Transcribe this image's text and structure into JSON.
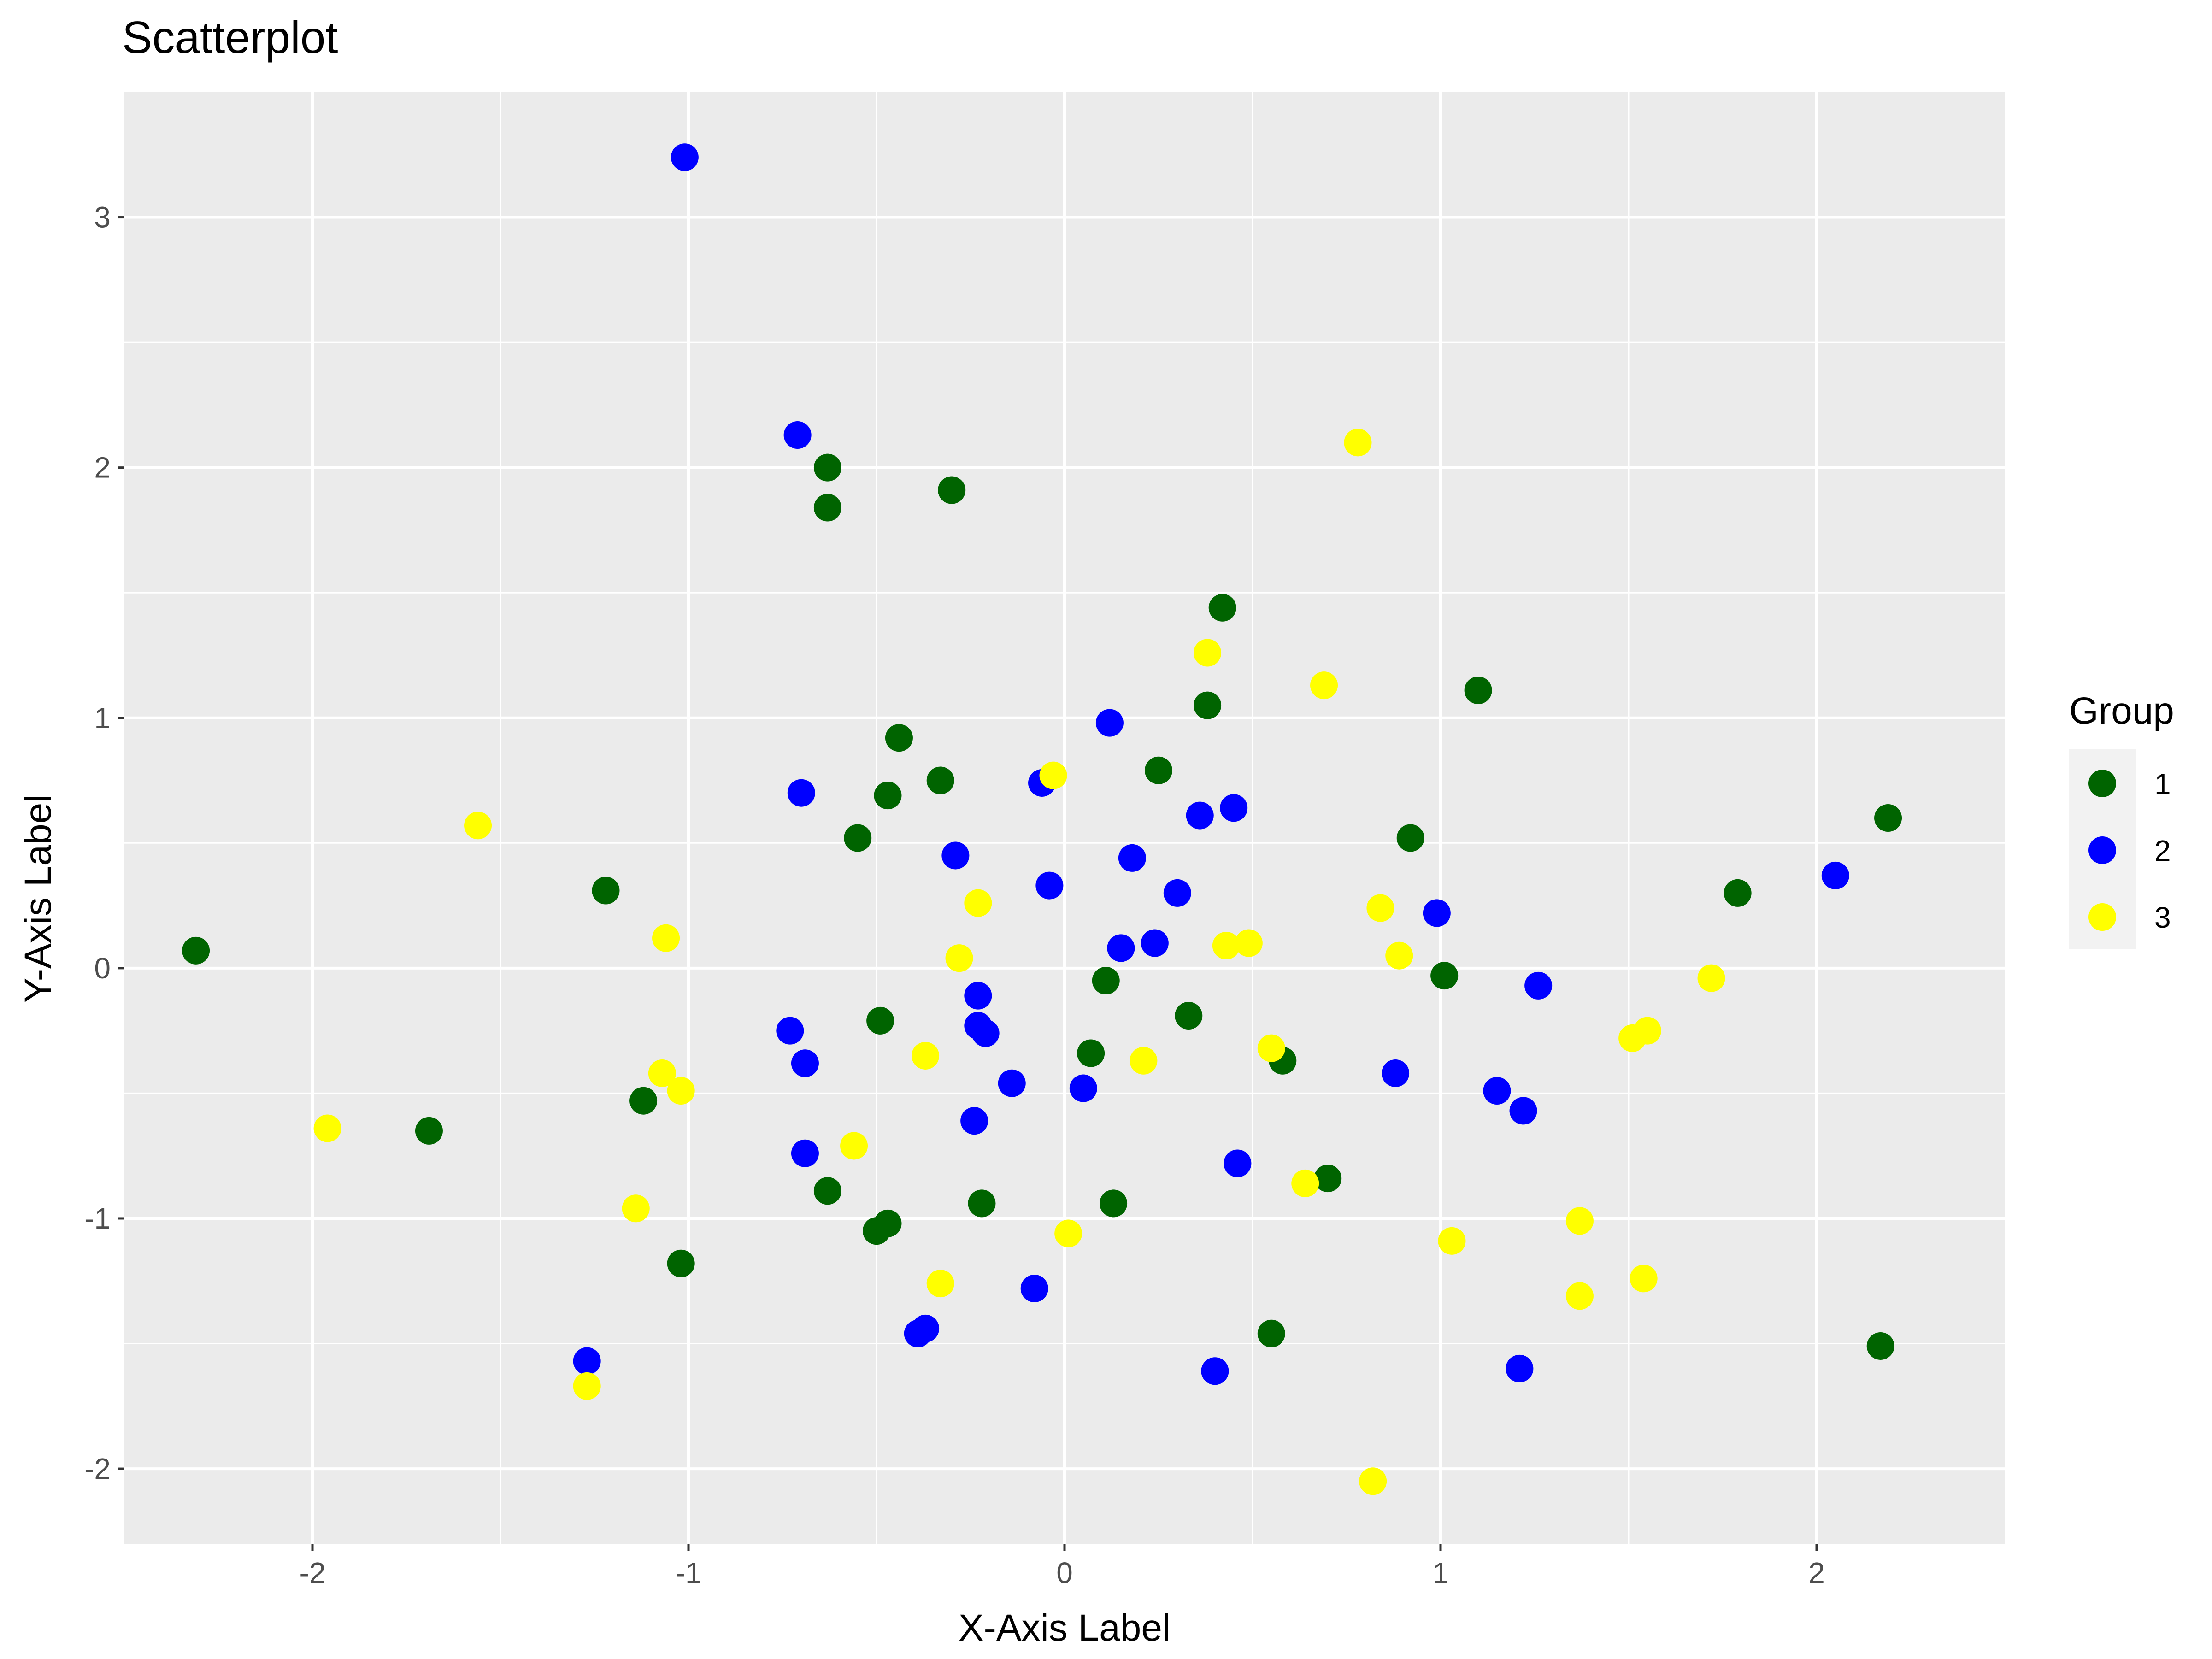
{
  "chart_data": {
    "type": "scatter",
    "title": "Scatterplot",
    "xlabel": "X-Axis Label",
    "ylabel": "Y-Axis Label",
    "xlim": [
      -2.5,
      2.5
    ],
    "ylim": [
      -2.3,
      3.5
    ],
    "x_ticks": [
      -2,
      -1,
      0,
      1,
      2
    ],
    "y_ticks": [
      -2,
      -1,
      0,
      1,
      2,
      3
    ],
    "x_tick_labels": [
      "-2",
      "-1",
      "0",
      "1",
      "2"
    ],
    "y_tick_labels": [
      "-2",
      "-1",
      "0",
      "1",
      "2",
      "3"
    ],
    "grid": true,
    "legend": {
      "title": "Group",
      "position": "right"
    },
    "series": [
      {
        "name": "1",
        "color": "#006400",
        "points": [
          [
            -2.31,
            0.07
          ],
          [
            -1.69,
            -0.65
          ],
          [
            -1.22,
            0.31
          ],
          [
            -1.12,
            -0.53
          ],
          [
            -1.02,
            -1.18
          ],
          [
            -0.63,
            2.0
          ],
          [
            -0.63,
            1.84
          ],
          [
            -0.3,
            1.91
          ],
          [
            -0.44,
            0.92
          ],
          [
            -0.47,
            0.69
          ],
          [
            -0.55,
            0.52
          ],
          [
            -0.33,
            0.75
          ],
          [
            -0.49,
            -0.21
          ],
          [
            -0.63,
            -0.89
          ],
          [
            -0.5,
            -1.05
          ],
          [
            -0.47,
            -1.02
          ],
          [
            -0.22,
            -0.94
          ],
          [
            0.42,
            1.44
          ],
          [
            0.38,
            1.05
          ],
          [
            0.25,
            0.79
          ],
          [
            0.11,
            -0.05
          ],
          [
            0.07,
            -0.34
          ],
          [
            0.33,
            -0.19
          ],
          [
            0.13,
            -0.94
          ],
          [
            0.58,
            -0.37
          ],
          [
            0.7,
            -0.84
          ],
          [
            0.55,
            -1.46
          ],
          [
            0.92,
            0.52
          ],
          [
            1.1,
            1.11
          ],
          [
            1.01,
            -0.03
          ],
          [
            1.79,
            0.3
          ],
          [
            2.19,
            0.6
          ],
          [
            2.17,
            -1.51
          ]
        ]
      },
      {
        "name": "2",
        "color": "#0000FF",
        "points": [
          [
            -1.01,
            3.24
          ],
          [
            -0.71,
            2.13
          ],
          [
            -0.7,
            0.7
          ],
          [
            -0.73,
            -0.25
          ],
          [
            -0.69,
            -0.38
          ],
          [
            -0.69,
            -0.74
          ],
          [
            -1.27,
            -1.57
          ],
          [
            -0.39,
            -1.46
          ],
          [
            -0.37,
            -1.44
          ],
          [
            -0.29,
            0.45
          ],
          [
            -0.23,
            -0.11
          ],
          [
            -0.23,
            -0.23
          ],
          [
            -0.21,
            -0.26
          ],
          [
            -0.14,
            -0.46
          ],
          [
            -0.24,
            -0.61
          ],
          [
            -0.08,
            -1.28
          ],
          [
            -0.04,
            0.33
          ],
          [
            -0.06,
            0.74
          ],
          [
            0.12,
            0.98
          ],
          [
            0.18,
            0.44
          ],
          [
            0.15,
            0.08
          ],
          [
            0.24,
            0.1
          ],
          [
            0.3,
            0.3
          ],
          [
            0.36,
            0.61
          ],
          [
            0.45,
            0.64
          ],
          [
            0.05,
            -0.48
          ],
          [
            0.46,
            -0.78
          ],
          [
            0.4,
            -1.61
          ],
          [
            0.88,
            -0.42
          ],
          [
            0.99,
            0.22
          ],
          [
            1.15,
            -0.49
          ],
          [
            1.22,
            -0.57
          ],
          [
            1.26,
            -0.07
          ],
          [
            1.21,
            -1.6
          ],
          [
            2.05,
            0.37
          ]
        ]
      },
      {
        "name": "3",
        "color": "#FFFF00",
        "points": [
          [
            -1.96,
            -0.64
          ],
          [
            -1.56,
            0.57
          ],
          [
            -1.06,
            0.12
          ],
          [
            -1.07,
            -0.42
          ],
          [
            -1.02,
            -0.49
          ],
          [
            -1.14,
            -0.96
          ],
          [
            -1.27,
            -1.67
          ],
          [
            -0.56,
            -0.71
          ],
          [
            -0.37,
            -0.35
          ],
          [
            -0.28,
            0.04
          ],
          [
            -0.23,
            0.26
          ],
          [
            -0.33,
            -1.26
          ],
          [
            -0.03,
            0.77
          ],
          [
            0.01,
            -1.06
          ],
          [
            0.38,
            1.26
          ],
          [
            0.43,
            0.09
          ],
          [
            0.49,
            0.1
          ],
          [
            0.21,
            -0.37
          ],
          [
            0.55,
            -0.32
          ],
          [
            0.64,
            -0.86
          ],
          [
            0.69,
            1.13
          ],
          [
            0.78,
            2.1
          ],
          [
            0.84,
            0.24
          ],
          [
            0.89,
            0.05
          ],
          [
            0.82,
            -2.05
          ],
          [
            1.03,
            -1.09
          ],
          [
            1.37,
            -1.01
          ],
          [
            1.37,
            -1.31
          ],
          [
            1.51,
            -0.28
          ],
          [
            1.55,
            -0.25
          ],
          [
            1.72,
            -0.04
          ],
          [
            1.54,
            -1.24
          ]
        ]
      }
    ]
  }
}
